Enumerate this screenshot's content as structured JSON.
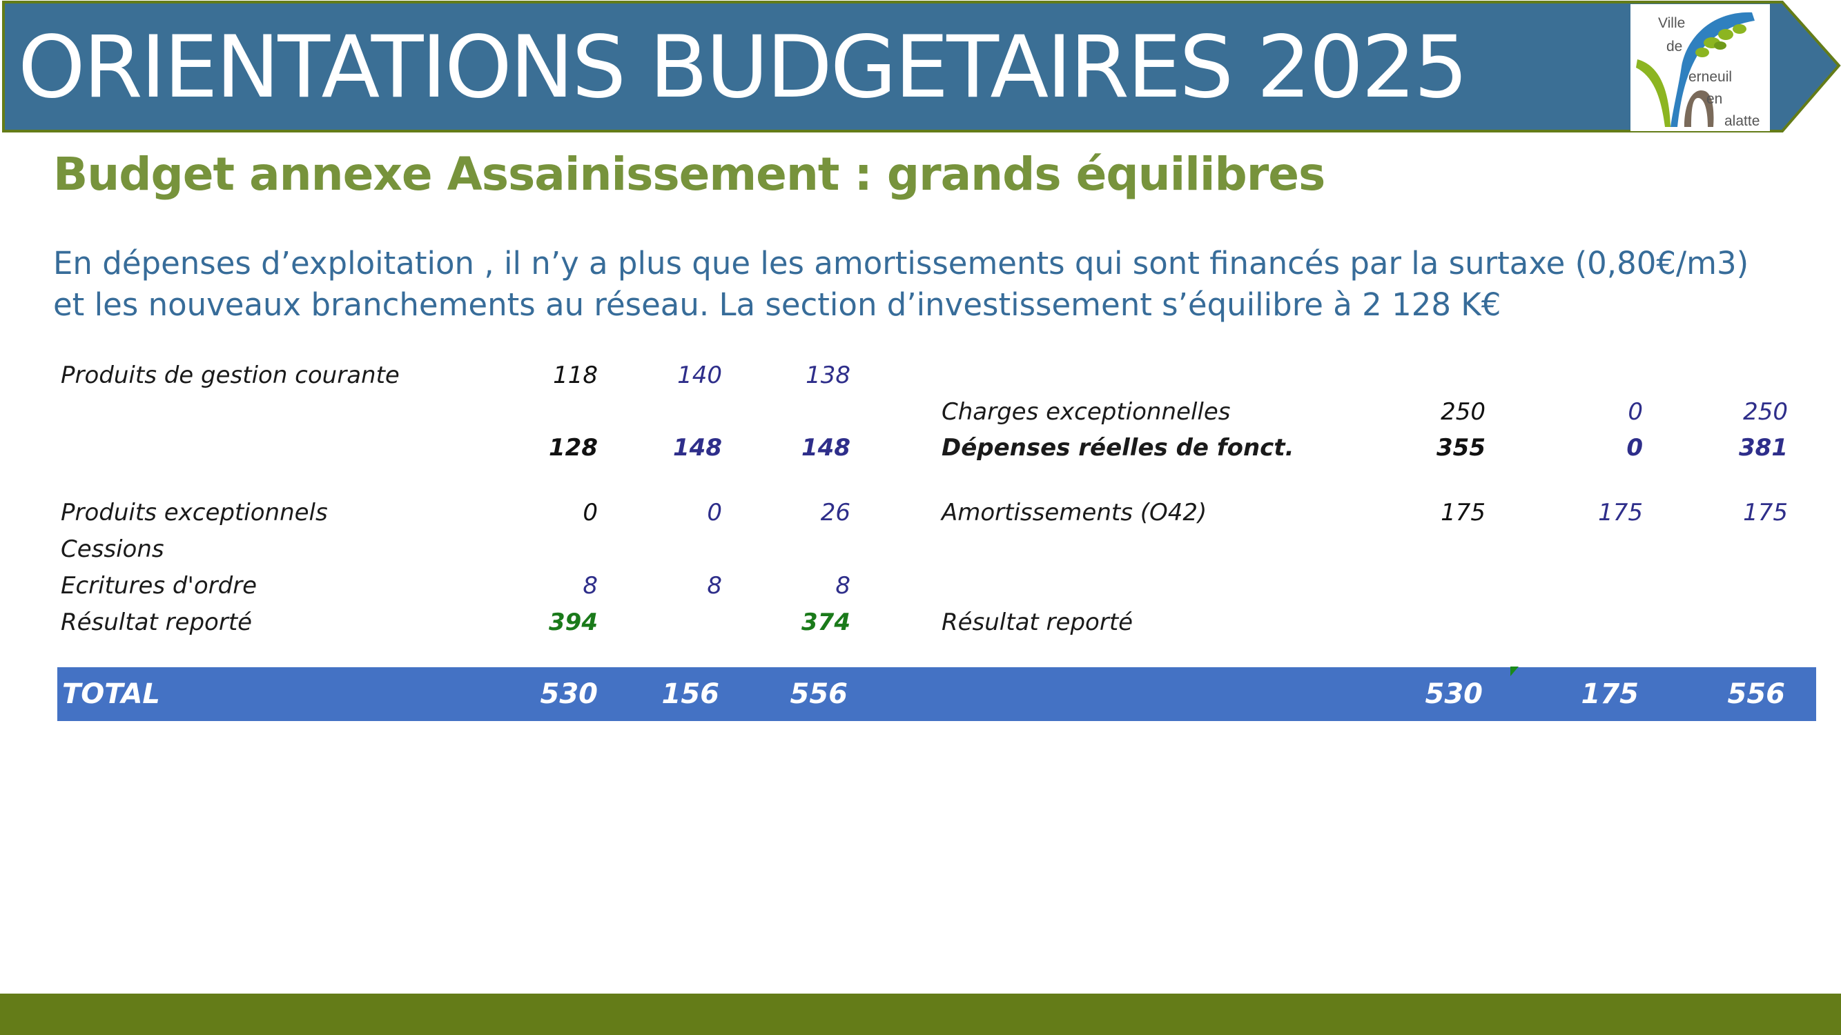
{
  "header": {
    "title": "ORIENTATIONS BUDGETAIRES 2025",
    "banner_color": "#3b6f95",
    "banner_border_color": "#647c18",
    "logo": {
      "lines": [
        "Ville",
        "de",
        "erneuil",
        "en",
        "alatte"
      ]
    }
  },
  "subtitle": "Budget annexe Assainissement : grands équilibres",
  "intro": {
    "line1": "En dépenses d’exploitation , il n’y a plus que les amortissements qui sont financés par la surtaxe (0,80€/m3)",
    "line2": "et les nouveaux branchements au réseau. La section d’investissement s’équilibre à 2 128 K€"
  },
  "table": {
    "left_rows": [
      {
        "label": "Produits de gestion  courante",
        "v1": "118",
        "v2": "140",
        "v3": "138"
      },
      {
        "label": "",
        "v1": "128",
        "v2": "148",
        "v3": "148"
      },
      {
        "label": "Produits exceptionnels",
        "v1": "0",
        "v2": "0",
        "v3": "26"
      },
      {
        "label": "Cessions",
        "v1": "",
        "v2": "",
        "v3": ""
      },
      {
        "label": "Ecritures d'ordre",
        "v1": "8",
        "v2": "8",
        "v3": "8"
      },
      {
        "label": "Résultat reporté",
        "v1": "394",
        "v2": "",
        "v3": "374"
      }
    ],
    "right_rows": [
      {
        "label": "Charges exceptionnelles",
        "v1": "250",
        "v2": "0",
        "v3": "250"
      },
      {
        "label": "Dépenses réelles de fonct.",
        "v1": "355",
        "v2": "0",
        "v3": "381"
      },
      {
        "label": "Amortissements (O42)",
        "v1": "175",
        "v2": "175",
        "v3": "175"
      },
      {
        "label": "Résultat reporté",
        "v1": "",
        "v2": "",
        "v3": ""
      }
    ],
    "total": {
      "label": "TOTAL",
      "left": [
        "530",
        "156",
        "556"
      ],
      "right": [
        "530",
        "175",
        "556"
      ],
      "bar_color": "#4472c4"
    }
  },
  "footer": {
    "bar_color": "#647c18"
  }
}
